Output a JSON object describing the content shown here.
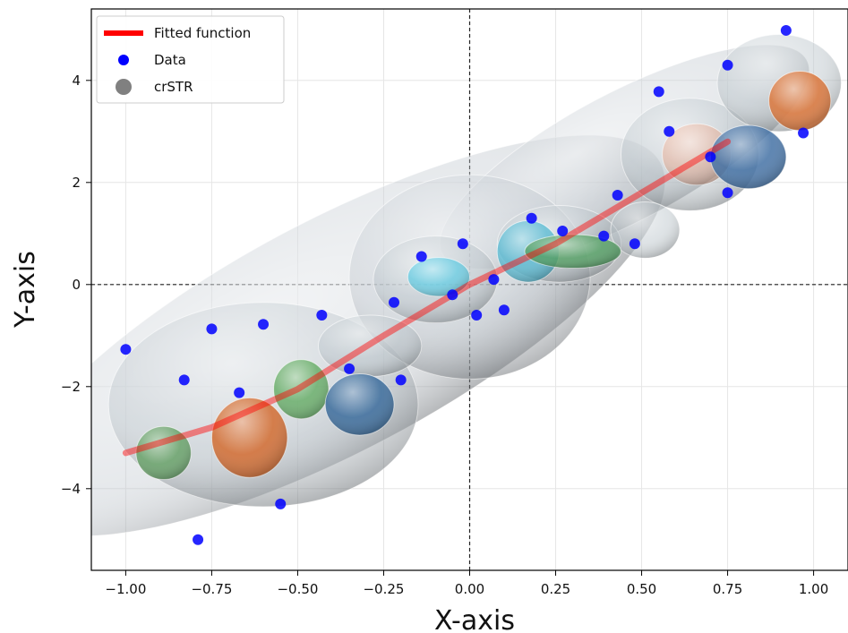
{
  "chart_data": {
    "type": "scatter",
    "xlabel": "X-axis",
    "ylabel": "Y-axis",
    "xlim": [
      -1.1,
      1.1
    ],
    "ylim": [
      -5.6,
      5.4
    ],
    "x_ticks": [
      -1.0,
      -0.75,
      -0.5,
      -0.25,
      0.0,
      0.25,
      0.5,
      0.75,
      1.0
    ],
    "x_tick_labels": [
      "−1.00",
      "−0.75",
      "−0.50",
      "−0.25",
      "0.00",
      "0.25",
      "0.50",
      "0.75",
      "1.00"
    ],
    "y_ticks": [
      -4,
      -2,
      0,
      2,
      4
    ],
    "y_tick_labels": [
      "−4",
      "−2",
      "0",
      "2",
      "4"
    ],
    "grid": true,
    "reference_lines": {
      "x": 0,
      "y": 0,
      "style": "dashed"
    },
    "legend": {
      "placement": "top-left",
      "entries": [
        "Fitted function",
        "Data",
        "crSTR"
      ]
    },
    "series": [
      {
        "name": "Fitted function",
        "kind": "line",
        "color": "#ff0000",
        "x": [
          -1.0,
          -0.75,
          -0.5,
          -0.25,
          0.0,
          0.25,
          0.5,
          0.75
        ],
        "y": [
          -3.3,
          -2.8,
          -2.05,
          -1.0,
          0.0,
          0.8,
          1.8,
          2.8
        ]
      },
      {
        "name": "Data",
        "kind": "points",
        "color": "#0000ff",
        "points": [
          [
            -1.0,
            -1.27
          ],
          [
            -0.79,
            -5.0
          ],
          [
            -0.75,
            -0.87
          ],
          [
            -0.83,
            -1.87
          ],
          [
            -0.67,
            -2.12
          ],
          [
            -0.6,
            -0.78
          ],
          [
            -0.43,
            -0.6
          ],
          [
            -0.35,
            -1.65
          ],
          [
            -0.2,
            -1.87
          ],
          [
            -0.22,
            -0.35
          ],
          [
            -0.14,
            0.55
          ],
          [
            -0.55,
            -4.3
          ],
          [
            -0.05,
            -0.2
          ],
          [
            -0.02,
            0.8
          ],
          [
            0.02,
            -0.6
          ],
          [
            0.07,
            0.1
          ],
          [
            0.1,
            -0.5
          ],
          [
            0.18,
            1.3
          ],
          [
            0.27,
            1.05
          ],
          [
            0.39,
            0.95
          ],
          [
            0.43,
            1.75
          ],
          [
            0.48,
            0.8
          ],
          [
            0.55,
            3.78
          ],
          [
            0.58,
            3.0
          ],
          [
            0.7,
            2.5
          ],
          [
            0.75,
            4.3
          ],
          [
            0.75,
            1.8
          ],
          [
            0.92,
            4.98
          ],
          [
            0.97,
            2.97
          ]
        ]
      },
      {
        "name": "crSTR",
        "kind": "ellipsoids",
        "color": "#808080",
        "regions": [
          {
            "cx": -0.39,
            "cy": -1.0,
            "rx": 1.07,
            "ry": 2.25,
            "angle": 28,
            "color": "#b4bec6",
            "opacity": 0.35
          },
          {
            "cx": 0.45,
            "cy": 2.5,
            "rx": 0.6,
            "ry": 1.25,
            "angle": 28,
            "color": "#b4bec6",
            "opacity": 0.35
          },
          {
            "cx": -0.6,
            "cy": -2.35,
            "rx": 0.45,
            "ry": 2.0,
            "angle": 0,
            "color": "#b4bec6",
            "opacity": 0.4
          },
          {
            "cx": 0.0,
            "cy": 0.15,
            "rx": 0.35,
            "ry": 2.0,
            "angle": 0,
            "color": "#b4bec6",
            "opacity": 0.35
          },
          {
            "cx": 0.64,
            "cy": 2.55,
            "rx": 0.2,
            "ry": 1.1,
            "angle": 0,
            "color": "#b4bec6",
            "opacity": 0.45
          },
          {
            "cx": -0.1,
            "cy": 0.1,
            "rx": 0.18,
            "ry": 0.85,
            "angle": 0,
            "color": "#b4bec6",
            "opacity": 0.45
          },
          {
            "cx": 0.9,
            "cy": 3.95,
            "rx": 0.18,
            "ry": 0.95,
            "angle": 0,
            "color": "#b4bec6",
            "opacity": 0.45
          },
          {
            "cx": 0.26,
            "cy": 0.8,
            "rx": 0.18,
            "ry": 0.75,
            "angle": 0,
            "color": "#b4bec6",
            "opacity": 0.45
          },
          {
            "cx": -0.29,
            "cy": -1.2,
            "rx": 0.15,
            "ry": 0.6,
            "angle": 0,
            "color": "#b4bec6",
            "opacity": 0.45
          },
          {
            "cx": 0.51,
            "cy": 1.07,
            "rx": 0.1,
            "ry": 0.55,
            "angle": 0,
            "color": "#b4bec6",
            "opacity": 0.45
          },
          {
            "cx": -0.09,
            "cy": 0.15,
            "rx": 0.09,
            "ry": 0.38,
            "angle": 0,
            "color": "#5bc8e0",
            "opacity": 0.75
          },
          {
            "cx": 0.17,
            "cy": 0.65,
            "rx": 0.09,
            "ry": 0.6,
            "angle": 0,
            "color": "#4ab5d0",
            "opacity": 0.75
          },
          {
            "cx": 0.3,
            "cy": 0.65,
            "rx": 0.14,
            "ry": 0.33,
            "angle": 0,
            "color": "#4a9a5a",
            "opacity": 0.8
          },
          {
            "cx": 0.66,
            "cy": 2.55,
            "rx": 0.1,
            "ry": 0.6,
            "angle": 0,
            "color": "#e8a080",
            "opacity": 0.45
          },
          {
            "cx": 0.81,
            "cy": 2.5,
            "rx": 0.11,
            "ry": 0.62,
            "angle": 0,
            "color": "#3a6aa0",
            "opacity": 0.85
          },
          {
            "cx": 0.96,
            "cy": 3.6,
            "rx": 0.09,
            "ry": 0.58,
            "angle": 0,
            "color": "#d8743a",
            "opacity": 0.9
          },
          {
            "cx": -0.49,
            "cy": -2.05,
            "rx": 0.08,
            "ry": 0.58,
            "angle": 0,
            "color": "#5aa65a",
            "opacity": 0.8
          },
          {
            "cx": -0.32,
            "cy": -2.35,
            "rx": 0.1,
            "ry": 0.6,
            "angle": 0,
            "color": "#3a6a9a",
            "opacity": 0.9
          },
          {
            "cx": -0.64,
            "cy": -3.0,
            "rx": 0.11,
            "ry": 0.78,
            "angle": 0,
            "color": "#d06a30",
            "opacity": 0.9
          },
          {
            "cx": -0.89,
            "cy": -3.3,
            "rx": 0.08,
            "ry": 0.52,
            "angle": 0,
            "color": "#5a9a5a",
            "opacity": 0.8
          }
        ]
      }
    ]
  }
}
